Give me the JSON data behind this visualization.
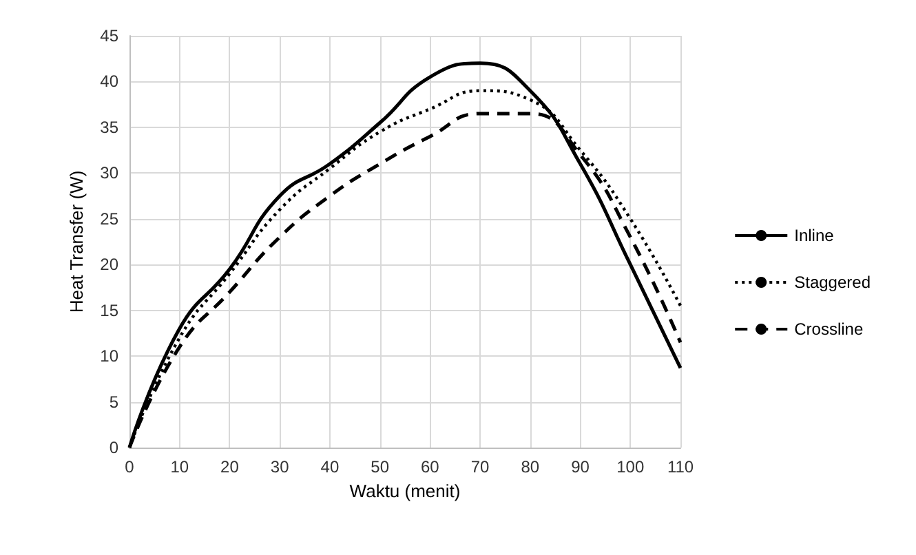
{
  "chart_data": {
    "type": "line",
    "xlabel": "Waktu (menit)",
    "ylabel": "Heat Transfer (W)",
    "x": [
      0,
      10,
      20,
      30,
      40,
      50,
      60,
      70,
      80,
      90,
      100,
      110
    ],
    "series": [
      {
        "name": "Inline",
        "color": "#000000",
        "line_style": "solid",
        "values": [
          0,
          13,
          19.5,
          27.5,
          31,
          35.5,
          40.5,
          42,
          39,
          31,
          20,
          8.7
        ]
      },
      {
        "name": "Staggered",
        "color": "#000000",
        "line_style": "dotted",
        "values": [
          0,
          12,
          19,
          26,
          30.5,
          34.5,
          37,
          39,
          38,
          32.5,
          25,
          15.5
        ]
      },
      {
        "name": "Crossline",
        "color": "#000000",
        "line_style": "dashed",
        "values": [
          0,
          11,
          17,
          23,
          27.5,
          31,
          34,
          36.5,
          36.5,
          32,
          23,
          11.5
        ]
      }
    ],
    "xlim": [
      0,
      110
    ],
    "xticks": [
      0,
      10,
      20,
      30,
      40,
      50,
      60,
      70,
      80,
      90,
      100,
      110
    ],
    "ylim": [
      0,
      45
    ],
    "yticks": [
      0,
      5,
      10,
      15,
      20,
      25,
      30,
      35,
      40,
      45
    ],
    "grid": true,
    "legend": "right",
    "marker": "none"
  }
}
